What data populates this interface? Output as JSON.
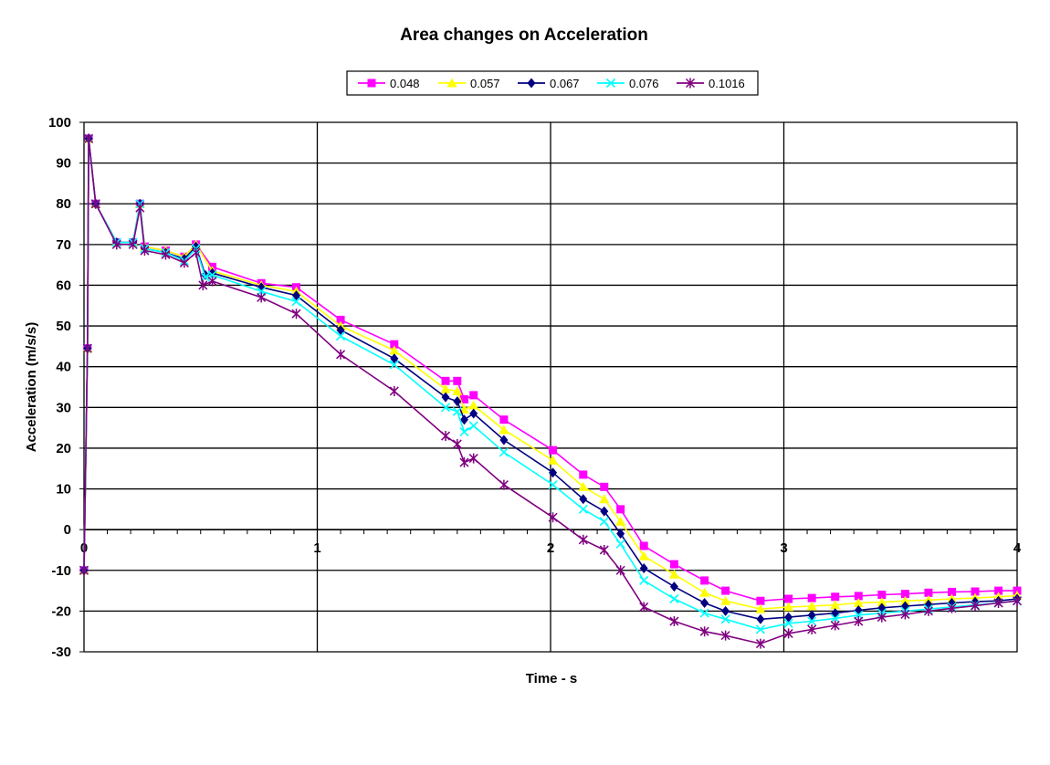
{
  "chart_data": {
    "type": "line",
    "title": "Area changes on Acceleration",
    "xlabel": "Time - s",
    "ylabel": "Acceleration (m/s/s)",
    "xlim": [
      0,
      4
    ],
    "ylim": [
      -30,
      100
    ],
    "x_ticks": [
      0,
      1,
      2,
      3,
      4
    ],
    "y_ticks": [
      -30,
      -20,
      -10,
      0,
      10,
      20,
      30,
      40,
      50,
      60,
      70,
      80,
      90,
      100
    ],
    "grid": true,
    "legend_position": "top",
    "series": [
      {
        "name": "0.048",
        "color": "#FF00FF",
        "marker": "square",
        "points": [
          [
            0,
            -10
          ],
          [
            0.015,
            44.5
          ],
          [
            0.02,
            96
          ],
          [
            0.05,
            80
          ],
          [
            0.14,
            70.5
          ],
          [
            0.21,
            70.5
          ],
          [
            0.24,
            80
          ],
          [
            0.26,
            69.5
          ],
          [
            0.35,
            68.5
          ],
          [
            0.43,
            67
          ],
          [
            0.48,
            70
          ],
          [
            0.55,
            64.5
          ],
          [
            0.76,
            60.5
          ],
          [
            0.91,
            59.5
          ],
          [
            1.1,
            51.5
          ],
          [
            1.33,
            45.5
          ],
          [
            1.55,
            36.5
          ],
          [
            1.6,
            36.5
          ],
          [
            1.63,
            32
          ],
          [
            1.67,
            33
          ],
          [
            1.8,
            27
          ],
          [
            2.01,
            19.5
          ],
          [
            2.14,
            13.5
          ],
          [
            2.23,
            10.5
          ],
          [
            2.3,
            5
          ],
          [
            2.4,
            -4
          ],
          [
            2.53,
            -8.5
          ],
          [
            2.66,
            -12.5
          ],
          [
            2.75,
            -15
          ],
          [
            2.9,
            -17.5
          ],
          [
            3.02,
            -17
          ],
          [
            3.12,
            -16.8
          ],
          [
            3.22,
            -16.5
          ],
          [
            3.32,
            -16.3
          ],
          [
            3.42,
            -16
          ],
          [
            3.52,
            -15.8
          ],
          [
            3.62,
            -15.5
          ],
          [
            3.72,
            -15.3
          ],
          [
            3.82,
            -15.2
          ],
          [
            3.92,
            -15
          ],
          [
            4.0,
            -15
          ]
        ]
      },
      {
        "name": "0.057",
        "color": "#FFFF00",
        "marker": "triangle",
        "points": [
          [
            0,
            -10
          ],
          [
            0.015,
            44.5
          ],
          [
            0.02,
            96
          ],
          [
            0.05,
            80
          ],
          [
            0.14,
            70.5
          ],
          [
            0.21,
            70.5
          ],
          [
            0.24,
            80
          ],
          [
            0.26,
            69.5
          ],
          [
            0.35,
            68.5
          ],
          [
            0.43,
            67
          ],
          [
            0.48,
            70
          ],
          [
            0.55,
            63.5
          ],
          [
            0.76,
            60
          ],
          [
            0.91,
            58.5
          ],
          [
            1.1,
            50
          ],
          [
            1.33,
            44
          ],
          [
            1.55,
            34.5
          ],
          [
            1.6,
            34
          ],
          [
            1.63,
            29.5
          ],
          [
            1.67,
            30.5
          ],
          [
            1.8,
            24.5
          ],
          [
            2.01,
            17
          ],
          [
            2.14,
            10.5
          ],
          [
            2.23,
            7.5
          ],
          [
            2.3,
            2
          ],
          [
            2.4,
            -6.5
          ],
          [
            2.53,
            -11
          ],
          [
            2.66,
            -15.5
          ],
          [
            2.75,
            -17.5
          ],
          [
            2.9,
            -19.5
          ],
          [
            3.02,
            -19
          ],
          [
            3.12,
            -18.8
          ],
          [
            3.22,
            -18.5
          ],
          [
            3.32,
            -18
          ],
          [
            3.42,
            -17.8
          ],
          [
            3.52,
            -17.5
          ],
          [
            3.62,
            -17.3
          ],
          [
            3.72,
            -17
          ],
          [
            3.82,
            -16.8
          ],
          [
            3.92,
            -16.5
          ],
          [
            4.0,
            -16.2
          ]
        ]
      },
      {
        "name": "0.067",
        "color": "#000080",
        "marker": "diamond",
        "points": [
          [
            0,
            -10
          ],
          [
            0.015,
            44.5
          ],
          [
            0.02,
            96
          ],
          [
            0.05,
            80
          ],
          [
            0.14,
            70.5
          ],
          [
            0.21,
            70.5
          ],
          [
            0.24,
            80
          ],
          [
            0.26,
            69
          ],
          [
            0.35,
            68
          ],
          [
            0.43,
            66.5
          ],
          [
            0.48,
            69.5
          ],
          [
            0.52,
            62.5
          ],
          [
            0.55,
            63
          ],
          [
            0.76,
            59.5
          ],
          [
            0.91,
            57.5
          ],
          [
            1.1,
            49
          ],
          [
            1.33,
            42
          ],
          [
            1.55,
            32.5
          ],
          [
            1.6,
            31.5
          ],
          [
            1.63,
            27
          ],
          [
            1.67,
            28.5
          ],
          [
            1.8,
            22
          ],
          [
            2.01,
            14
          ],
          [
            2.14,
            7.5
          ],
          [
            2.23,
            4.5
          ],
          [
            2.3,
            -1
          ],
          [
            2.4,
            -9.5
          ],
          [
            2.53,
            -14
          ],
          [
            2.66,
            -18
          ],
          [
            2.75,
            -20
          ],
          [
            2.9,
            -22
          ],
          [
            3.02,
            -21.5
          ],
          [
            3.12,
            -21
          ],
          [
            3.22,
            -20.5
          ],
          [
            3.32,
            -19.8
          ],
          [
            3.42,
            -19.2
          ],
          [
            3.52,
            -18.8
          ],
          [
            3.62,
            -18.4
          ],
          [
            3.72,
            -18
          ],
          [
            3.82,
            -17.7
          ],
          [
            3.92,
            -17.5
          ],
          [
            4.0,
            -17
          ]
        ]
      },
      {
        "name": "0.076",
        "color": "#00FFFF",
        "marker": "x",
        "points": [
          [
            0,
            -10
          ],
          [
            0.015,
            44.5
          ],
          [
            0.02,
            96
          ],
          [
            0.05,
            80
          ],
          [
            0.14,
            70.5
          ],
          [
            0.21,
            70.5
          ],
          [
            0.24,
            80
          ],
          [
            0.26,
            69
          ],
          [
            0.35,
            68
          ],
          [
            0.43,
            66
          ],
          [
            0.48,
            69
          ],
          [
            0.52,
            62
          ],
          [
            0.55,
            62.5
          ],
          [
            0.76,
            58.5
          ],
          [
            0.91,
            56
          ],
          [
            1.1,
            47.5
          ],
          [
            1.33,
            40.5
          ],
          [
            1.55,
            30
          ],
          [
            1.6,
            29
          ],
          [
            1.63,
            24
          ],
          [
            1.67,
            25.5
          ],
          [
            1.8,
            19
          ],
          [
            2.01,
            11
          ],
          [
            2.14,
            5
          ],
          [
            2.23,
            2
          ],
          [
            2.3,
            -3.5
          ],
          [
            2.4,
            -12.5
          ],
          [
            2.53,
            -17
          ],
          [
            2.66,
            -20.5
          ],
          [
            2.75,
            -22
          ],
          [
            2.9,
            -24.5
          ],
          [
            3.02,
            -23
          ],
          [
            3.12,
            -22.5
          ],
          [
            3.22,
            -21.8
          ],
          [
            3.32,
            -21
          ],
          [
            3.42,
            -20.5
          ],
          [
            3.52,
            -20
          ],
          [
            3.62,
            -19.5
          ],
          [
            3.72,
            -19
          ],
          [
            3.82,
            -18.5
          ],
          [
            3.92,
            -18
          ],
          [
            4.0,
            -17.5
          ]
        ]
      },
      {
        "name": "0.1016",
        "color": "#800080",
        "marker": "star",
        "points": [
          [
            0,
            -10
          ],
          [
            0.015,
            44.5
          ],
          [
            0.02,
            96
          ],
          [
            0.05,
            80
          ],
          [
            0.14,
            70
          ],
          [
            0.21,
            70
          ],
          [
            0.24,
            79
          ],
          [
            0.26,
            68.5
          ],
          [
            0.35,
            67.5
          ],
          [
            0.43,
            65.5
          ],
          [
            0.48,
            68
          ],
          [
            0.51,
            60
          ],
          [
            0.55,
            61
          ],
          [
            0.76,
            57
          ],
          [
            0.91,
            53
          ],
          [
            1.1,
            43
          ],
          [
            1.33,
            34
          ],
          [
            1.55,
            23
          ],
          [
            1.6,
            21
          ],
          [
            1.63,
            16.5
          ],
          [
            1.67,
            17.5
          ],
          [
            1.8,
            11
          ],
          [
            2.01,
            3
          ],
          [
            2.14,
            -2.5
          ],
          [
            2.23,
            -5
          ],
          [
            2.3,
            -10
          ],
          [
            2.4,
            -19
          ],
          [
            2.53,
            -22.5
          ],
          [
            2.66,
            -25
          ],
          [
            2.75,
            -26
          ],
          [
            2.9,
            -28
          ],
          [
            3.02,
            -25.5
          ],
          [
            3.12,
            -24.5
          ],
          [
            3.22,
            -23.5
          ],
          [
            3.32,
            -22.5
          ],
          [
            3.42,
            -21.5
          ],
          [
            3.52,
            -20.8
          ],
          [
            3.62,
            -20
          ],
          [
            3.72,
            -19.3
          ],
          [
            3.82,
            -18.7
          ],
          [
            3.92,
            -18
          ],
          [
            4.0,
            -17.5
          ]
        ]
      }
    ]
  }
}
